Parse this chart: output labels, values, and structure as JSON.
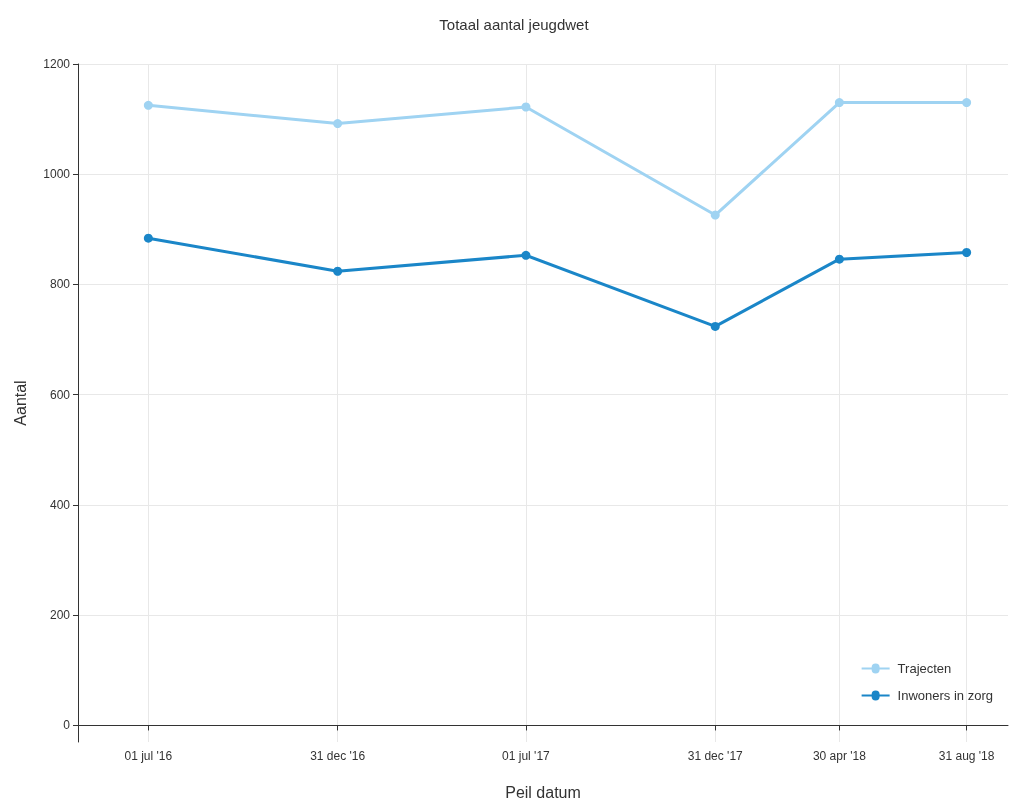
{
  "chart_data": {
    "type": "line",
    "title": "Totaal aantal jeugdwet",
    "xlabel": "Peil datum",
    "ylabel": "Aantal",
    "x": [
      "2016-07-01",
      "2016-12-31",
      "2017-07-01",
      "2017-12-31",
      "2018-04-30",
      "2018-08-31"
    ],
    "series": [
      {
        "name": "Trajecten",
        "color": "#9fd3f2",
        "values": [
          1125,
          1092,
          1122,
          926,
          1130,
          1130
        ]
      },
      {
        "name": "Inwoners in zorg",
        "color": "#1a86c8",
        "values": [
          884,
          824,
          853,
          724,
          846,
          858
        ]
      }
    ],
    "xlim": [
      "2016-04-24",
      "2018-10-10"
    ],
    "xticks": [
      {
        "value": "2016-07-01",
        "label": "01 jul '16"
      },
      {
        "value": "2016-12-31",
        "label": "31 dec '16"
      },
      {
        "value": "2017-07-01",
        "label": "01 jul '17"
      },
      {
        "value": "2017-12-31",
        "label": "31 dec '17"
      },
      {
        "value": "2018-04-30",
        "label": "30 apr '18"
      },
      {
        "value": "2018-08-31",
        "label": "31 aug '18"
      }
    ],
    "ylim": [
      -30,
      1200
    ],
    "yticks": [
      0,
      200,
      400,
      600,
      800,
      1000,
      1200
    ],
    "grid": true,
    "legend": "bottom right",
    "marker": "circle",
    "line_style": "solid"
  }
}
